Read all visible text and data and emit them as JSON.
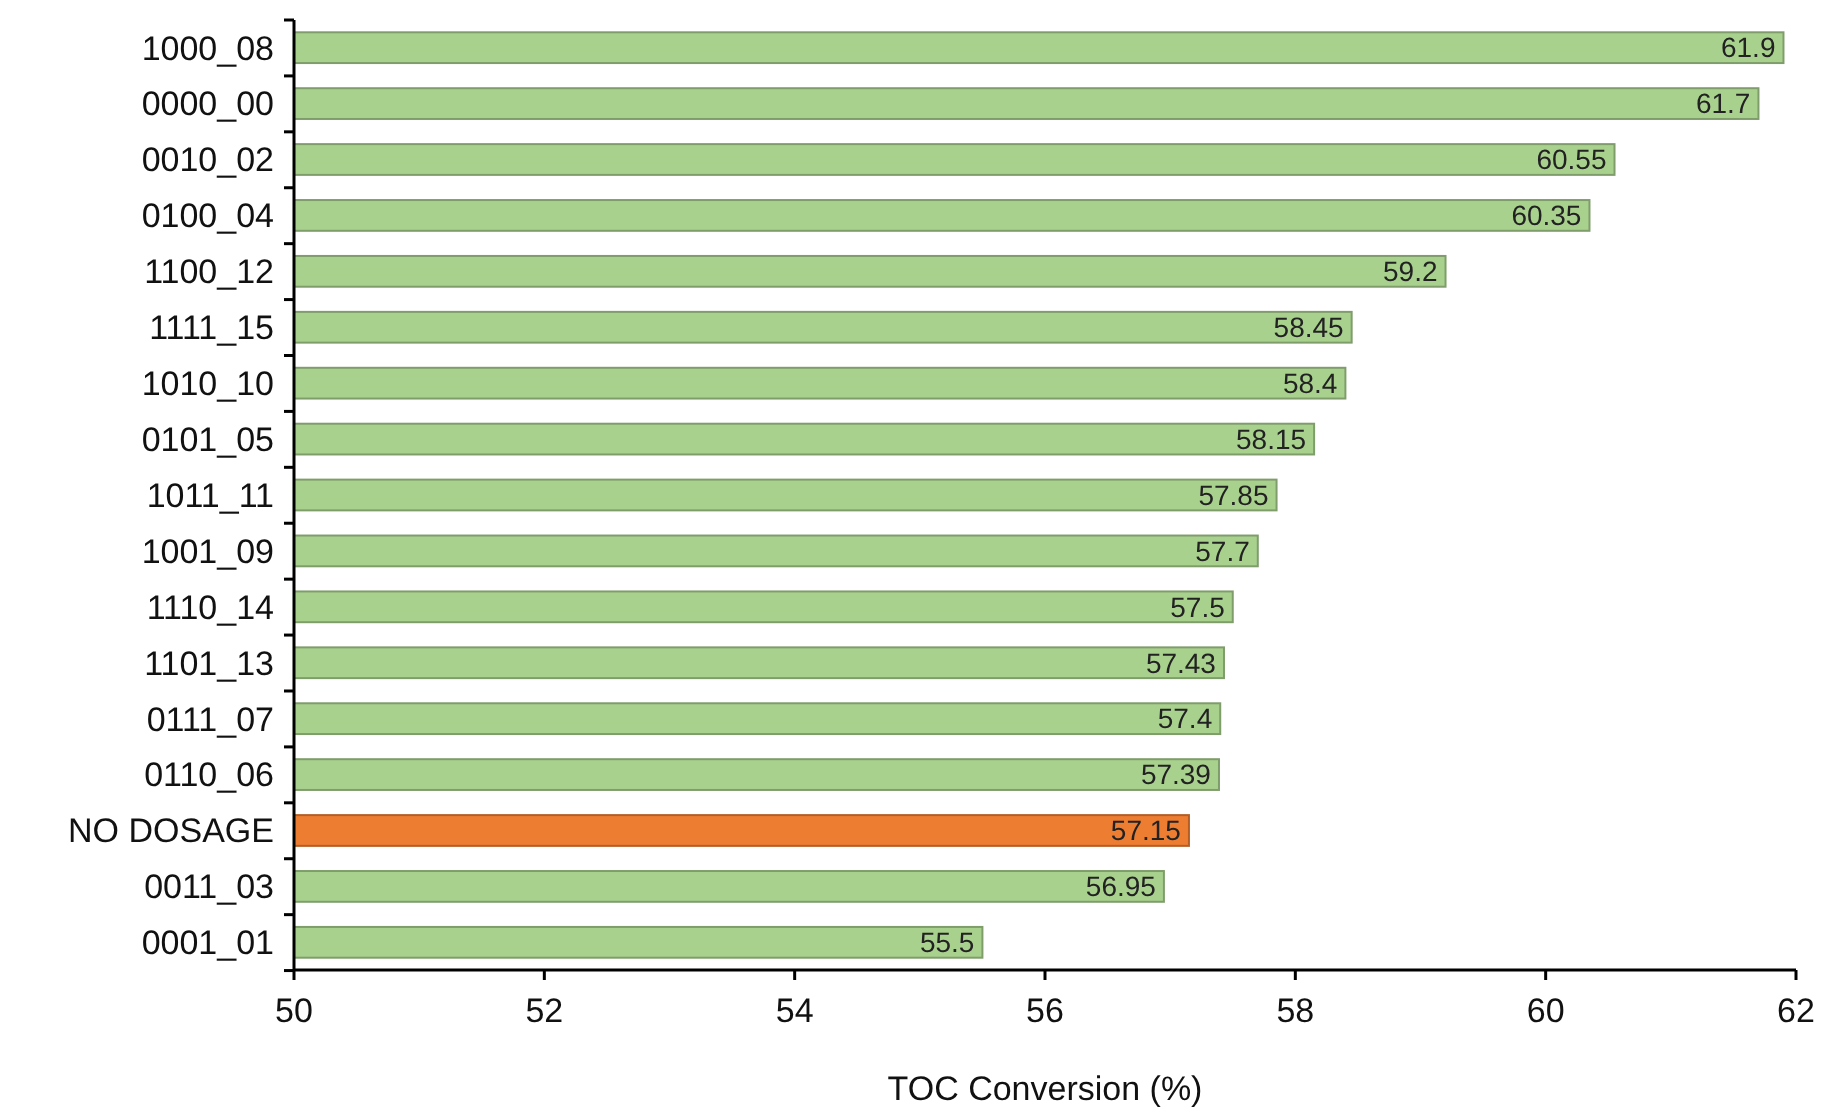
{
  "chart_data": {
    "type": "bar",
    "orientation": "horizontal",
    "xlabel": "TOC Conversion (%)",
    "categories": [
      "1000_08",
      "0000_00",
      "0010_02",
      "0100_04",
      "1100_12",
      "1111_15",
      "1010_10",
      "0101_05",
      "1011_11",
      "1001_09",
      "1110_14",
      "1101_13",
      "0111_07",
      "0110_06",
      "NO DOSAGE",
      "0011_03",
      "0001_01"
    ],
    "values": [
      61.9,
      61.7,
      60.55,
      60.35,
      59.2,
      58.45,
      58.4,
      58.15,
      57.85,
      57.7,
      57.5,
      57.43,
      57.4,
      57.39,
      57.15,
      56.95,
      55.5
    ],
    "colors": [
      "#a9d18e",
      "#a9d18e",
      "#a9d18e",
      "#a9d18e",
      "#a9d18e",
      "#a9d18e",
      "#a9d18e",
      "#a9d18e",
      "#a9d18e",
      "#a9d18e",
      "#a9d18e",
      "#a9d18e",
      "#a9d18e",
      "#a9d18e",
      "#ed7d31",
      "#a9d18e",
      "#a9d18e"
    ],
    "xlim": [
      50,
      62
    ],
    "xticks": [
      50,
      52,
      54,
      56,
      58,
      60,
      62
    ],
    "data_labels": true,
    "grid": false
  }
}
